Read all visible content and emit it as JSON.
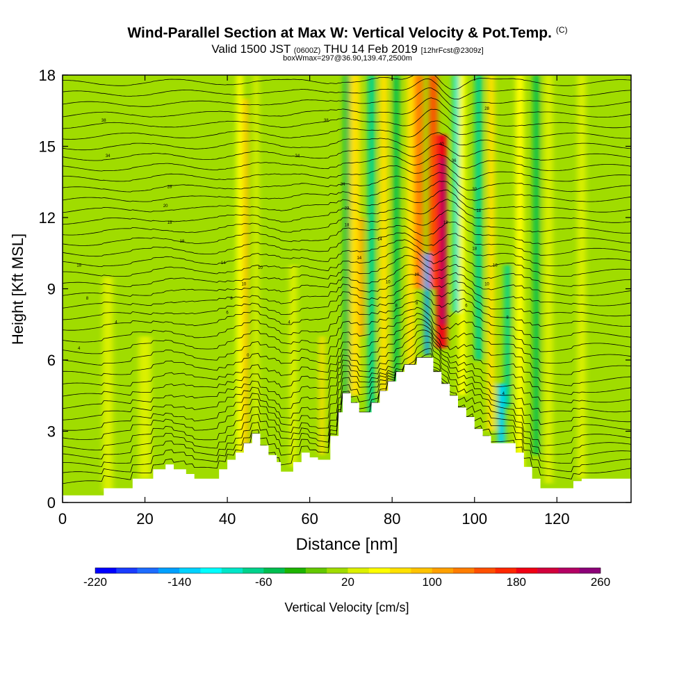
{
  "header": {
    "title": "Wind-Parallel Section at Max W: Vertical Velocity & Pot.Temp.",
    "title_tag": "(C)",
    "valid_prefix": "Valid 1500 JST",
    "valid_zulu": "(0600Z)",
    "valid_date": "THU 14 Feb 2019",
    "forecast": "[12hrFcst@2309z]",
    "boxwmax": "boxWmax=297@36.90,139.47,2500m"
  },
  "chart_data": {
    "type": "heatmap",
    "xlabel": "Distance [nm]",
    "ylabel": "Height [Kft MSL]",
    "xlim": [
      0,
      138
    ],
    "ylim": [
      0,
      18
    ],
    "x_ticks": [
      0,
      20,
      40,
      60,
      80,
      100,
      120
    ],
    "y_ticks": [
      0,
      3,
      6,
      9,
      12,
      15,
      18
    ],
    "x_tick_labels": [
      "0",
      "20",
      "40",
      "60",
      "80",
      "100",
      "120"
    ],
    "y_tick_labels": [
      "0",
      "3",
      "6",
      "9",
      "12",
      "15",
      "18"
    ],
    "colorbar": {
      "label": "Vertical Velocity [cm/s]",
      "min": -220,
      "max": 260,
      "step": 20,
      "tick_values": [
        -220,
        -140,
        -60,
        20,
        100,
        180,
        260
      ],
      "tick_labels": [
        "-220",
        "-140",
        "-60",
        "20",
        "100",
        "180",
        "260"
      ],
      "colors": [
        "#0000ff",
        "#1a3cff",
        "#1e6cff",
        "#00a0ff",
        "#00d2ff",
        "#00ffff",
        "#00e6c8",
        "#00d28c",
        "#00be50",
        "#1eb400",
        "#64c800",
        "#a0dc00",
        "#dcf000",
        "#ffff00",
        "#ffe100",
        "#ffc300",
        "#ffa000",
        "#ff7d00",
        "#ff5000",
        "#ff2800",
        "#f00014",
        "#d2003c",
        "#b40064",
        "#8c0078",
        "#640096"
      ]
    },
    "terrain": [
      [
        0,
        0.3
      ],
      [
        10,
        0.3
      ],
      [
        10,
        0.6
      ],
      [
        17,
        0.6
      ],
      [
        17,
        1.0
      ],
      [
        22,
        1.0
      ],
      [
        22,
        1.4
      ],
      [
        25,
        1.4
      ],
      [
        25,
        1.6
      ],
      [
        27,
        1.6
      ],
      [
        27,
        1.4
      ],
      [
        30,
        1.4
      ],
      [
        30,
        1.2
      ],
      [
        32,
        1.2
      ],
      [
        32,
        1.0
      ],
      [
        38,
        1.0
      ],
      [
        38,
        1.4
      ],
      [
        40,
        1.4
      ],
      [
        40,
        1.8
      ],
      [
        42,
        1.8
      ],
      [
        42,
        2.1
      ],
      [
        44,
        2.1
      ],
      [
        44,
        2.5
      ],
      [
        46,
        2.5
      ],
      [
        46,
        2.9
      ],
      [
        48,
        2.9
      ],
      [
        48,
        2.4
      ],
      [
        50,
        2.4
      ],
      [
        50,
        2.0
      ],
      [
        52,
        2.0
      ],
      [
        52,
        1.7
      ],
      [
        53,
        1.7
      ],
      [
        53,
        1.3
      ],
      [
        56,
        1.3
      ],
      [
        56,
        1.7
      ],
      [
        58,
        1.7
      ],
      [
        58,
        2.1
      ],
      [
        60,
        2.1
      ],
      [
        60,
        1.9
      ],
      [
        62,
        1.9
      ],
      [
        62,
        1.8
      ],
      [
        65,
        1.8
      ],
      [
        65,
        2.8
      ],
      [
        67,
        2.8
      ],
      [
        67,
        3.8
      ],
      [
        68,
        3.8
      ],
      [
        68,
        4.6
      ],
      [
        70,
        4.6
      ],
      [
        70,
        4.2
      ],
      [
        72,
        4.2
      ],
      [
        72,
        3.8
      ],
      [
        75,
        3.8
      ],
      [
        75,
        4.2
      ],
      [
        77,
        4.2
      ],
      [
        77,
        4.7
      ],
      [
        79,
        4.7
      ],
      [
        79,
        5.1
      ],
      [
        81,
        5.1
      ],
      [
        81,
        5.5
      ],
      [
        83,
        5.5
      ],
      [
        83,
        5.8
      ],
      [
        86,
        5.8
      ],
      [
        86,
        6.1
      ],
      [
        90,
        6.1
      ],
      [
        90,
        5.5
      ],
      [
        92,
        5.5
      ],
      [
        92,
        5.0
      ],
      [
        94,
        5.0
      ],
      [
        94,
        4.5
      ],
      [
        96,
        4.5
      ],
      [
        96,
        4.0
      ],
      [
        98,
        4.0
      ],
      [
        98,
        3.6
      ],
      [
        100,
        3.6
      ],
      [
        100,
        3.1
      ],
      [
        102,
        3.1
      ],
      [
        102,
        2.8
      ],
      [
        104,
        2.8
      ],
      [
        104,
        2.5
      ],
      [
        110,
        2.5
      ],
      [
        110,
        2.1
      ],
      [
        112,
        2.1
      ],
      [
        112,
        1.5
      ],
      [
        114,
        1.5
      ],
      [
        114,
        1.0
      ],
      [
        116,
        1.0
      ],
      [
        116,
        0.6
      ],
      [
        124,
        0.6
      ],
      [
        124,
        0.9
      ],
      [
        126,
        0.9
      ],
      [
        126,
        1.0
      ],
      [
        138,
        1.0
      ]
    ],
    "updraft_bands": [
      {
        "x": 11,
        "w": 2.5,
        "ymin": 0.5,
        "ymax": 9.5,
        "value": 25
      },
      {
        "x": 20,
        "w": 3.0,
        "ymin": 1.0,
        "ymax": 7.0,
        "value": 35
      },
      {
        "x": 43,
        "w": 1.5,
        "ymin": 2.0,
        "ymax": 18,
        "value": 45
      },
      {
        "x": 44.5,
        "w": 1.2,
        "ymin": 2.2,
        "ymax": 17,
        "value": 90
      },
      {
        "x": 47,
        "w": 1.2,
        "ymin": 3.0,
        "ymax": 18,
        "value": 30
      },
      {
        "x": 56,
        "w": 1.8,
        "ymin": 1.5,
        "ymax": 10,
        "value": 25
      },
      {
        "x": 63,
        "w": 1.2,
        "ymin": 2.0,
        "ymax": 7.0,
        "value": 70
      },
      {
        "x": 71,
        "w": 2.5,
        "ymin": 4.5,
        "ymax": 18,
        "value": 65
      },
      {
        "x": 72.5,
        "w": 1.0,
        "ymin": 7.0,
        "ymax": 12,
        "value": 110
      },
      {
        "x": 78,
        "w": 2.0,
        "ymin": 4.5,
        "ymax": 18,
        "value": 60
      },
      {
        "x": 84.5,
        "w": 2.0,
        "ymin": 5.5,
        "ymax": 18,
        "value": 70
      },
      {
        "x": 86.5,
        "w": 2.2,
        "ymin": 9.0,
        "ymax": 18,
        "value": 125
      },
      {
        "x": 90,
        "w": 2.0,
        "ymin": 9.0,
        "ymax": 18,
        "value": 150
      },
      {
        "x": 92,
        "w": 2.5,
        "ymin": 6.5,
        "ymax": 15.5,
        "value": 185
      },
      {
        "x": 92.5,
        "w": 1.2,
        "ymin": 7.5,
        "ymax": 14.5,
        "value": 230
      },
      {
        "x": 97,
        "w": 1.8,
        "ymin": 4.5,
        "ymax": 18,
        "value": 50
      },
      {
        "x": 104,
        "w": 1.8,
        "ymin": 3.0,
        "ymax": 18,
        "value": 60
      },
      {
        "x": 111,
        "w": 2.0,
        "ymin": 1.0,
        "ymax": 18,
        "value": 50
      },
      {
        "x": 118,
        "w": 2.0,
        "ymin": 0.8,
        "ymax": 18,
        "value": 35
      },
      {
        "x": 126,
        "w": 2.0,
        "ymin": 1.0,
        "ymax": 18,
        "value": 30
      }
    ],
    "downdraft_bands": [
      {
        "x": 69,
        "w": 1.5,
        "ymin": 3.5,
        "ymax": 18,
        "value": -60
      },
      {
        "x": 75,
        "w": 1.8,
        "ymin": 3.5,
        "ymax": 18,
        "value": -65
      },
      {
        "x": 81,
        "w": 1.5,
        "ymin": 4.5,
        "ymax": 18,
        "value": -60
      },
      {
        "x": 88.5,
        "w": 1.3,
        "ymin": 6.2,
        "ymax": 10.5,
        "value": -150
      },
      {
        "x": 95.5,
        "w": 1.5,
        "ymin": 8.0,
        "ymax": 18,
        "value": -100
      },
      {
        "x": 101,
        "w": 1.8,
        "ymin": 6.0,
        "ymax": 18,
        "value": -80
      },
      {
        "x": 106.5,
        "w": 1.8,
        "ymin": 2.5,
        "ymax": 5.0,
        "value": -140
      },
      {
        "x": 108,
        "w": 1.5,
        "ymin": 4.0,
        "ymax": 10,
        "value": -70
      },
      {
        "x": 115,
        "w": 1.5,
        "ymin": 2.0,
        "ymax": 18,
        "value": -50
      }
    ],
    "isentrope_levels": [
      0.55,
      0.95,
      1.35,
      1.75,
      2.15,
      2.6,
      3.0,
      3.45,
      3.9,
      4.35,
      4.8,
      5.3,
      5.8,
      6.3,
      6.8,
      7.3,
      7.75,
      8.2,
      8.65,
      9.1,
      9.55,
      10.0,
      10.45,
      10.9,
      11.35,
      11.8,
      12.25,
      12.7,
      13.15,
      13.6,
      14.05,
      14.5,
      14.95,
      15.4,
      15.85,
      16.3,
      16.75,
      17.2,
      17.65
    ],
    "isentrope_labels": [
      {
        "x": 4,
        "y": 10.0,
        "text": "18"
      },
      {
        "x": 6,
        "y": 8.6,
        "text": "8"
      },
      {
        "x": 13,
        "y": 7.6,
        "text": "4"
      },
      {
        "x": 4,
        "y": 6.5,
        "text": "4"
      },
      {
        "x": 10,
        "y": 16.1,
        "text": "38"
      },
      {
        "x": 11,
        "y": 14.6,
        "text": "34"
      },
      {
        "x": 26,
        "y": 13.3,
        "text": "28"
      },
      {
        "x": 25,
        "y": 12.5,
        "text": "20"
      },
      {
        "x": 26,
        "y": 11.8,
        "text": "18"
      },
      {
        "x": 29,
        "y": 11.0,
        "text": "18"
      },
      {
        "x": 39,
        "y": 10.1,
        "text": "14"
      },
      {
        "x": 48,
        "y": 9.9,
        "text": "10"
      },
      {
        "x": 44,
        "y": 9.2,
        "text": "10"
      },
      {
        "x": 41,
        "y": 8.6,
        "text": "8"
      },
      {
        "x": 40,
        "y": 8.0,
        "text": "6"
      },
      {
        "x": 55,
        "y": 7.6,
        "text": "4"
      },
      {
        "x": 45,
        "y": 6.2,
        "text": "0"
      },
      {
        "x": 57,
        "y": 14.6,
        "text": "34"
      },
      {
        "x": 64,
        "y": 16.1,
        "text": "38"
      },
      {
        "x": 68,
        "y": 13.4,
        "text": "34"
      },
      {
        "x": 69,
        "y": 12.4,
        "text": "23"
      },
      {
        "x": 69,
        "y": 11.7,
        "text": "18"
      },
      {
        "x": 77,
        "y": 11.1,
        "text": "14"
      },
      {
        "x": 72,
        "y": 10.3,
        "text": "14"
      },
      {
        "x": 79,
        "y": 9.3,
        "text": "10"
      },
      {
        "x": 81,
        "y": 8.3,
        "text": "8"
      },
      {
        "x": 86,
        "y": 9.6,
        "text": "10"
      },
      {
        "x": 86,
        "y": 8.4,
        "text": "8"
      },
      {
        "x": 92,
        "y": 15.1,
        "text": "40"
      },
      {
        "x": 95,
        "y": 14.4,
        "text": "36"
      },
      {
        "x": 93,
        "y": 11.8,
        "text": "18"
      },
      {
        "x": 103,
        "y": 16.6,
        "text": "28"
      },
      {
        "x": 100,
        "y": 13.2,
        "text": "30"
      },
      {
        "x": 101,
        "y": 12.3,
        "text": "18"
      },
      {
        "x": 100,
        "y": 10.7,
        "text": "18"
      },
      {
        "x": 105,
        "y": 10.0,
        "text": "18"
      },
      {
        "x": 103,
        "y": 9.2,
        "text": "10"
      },
      {
        "x": 98,
        "y": 8.3,
        "text": "6"
      },
      {
        "x": 108,
        "y": 7.8,
        "text": "8"
      },
      {
        "x": 107,
        "y": 4.6,
        "text": "4"
      }
    ]
  }
}
